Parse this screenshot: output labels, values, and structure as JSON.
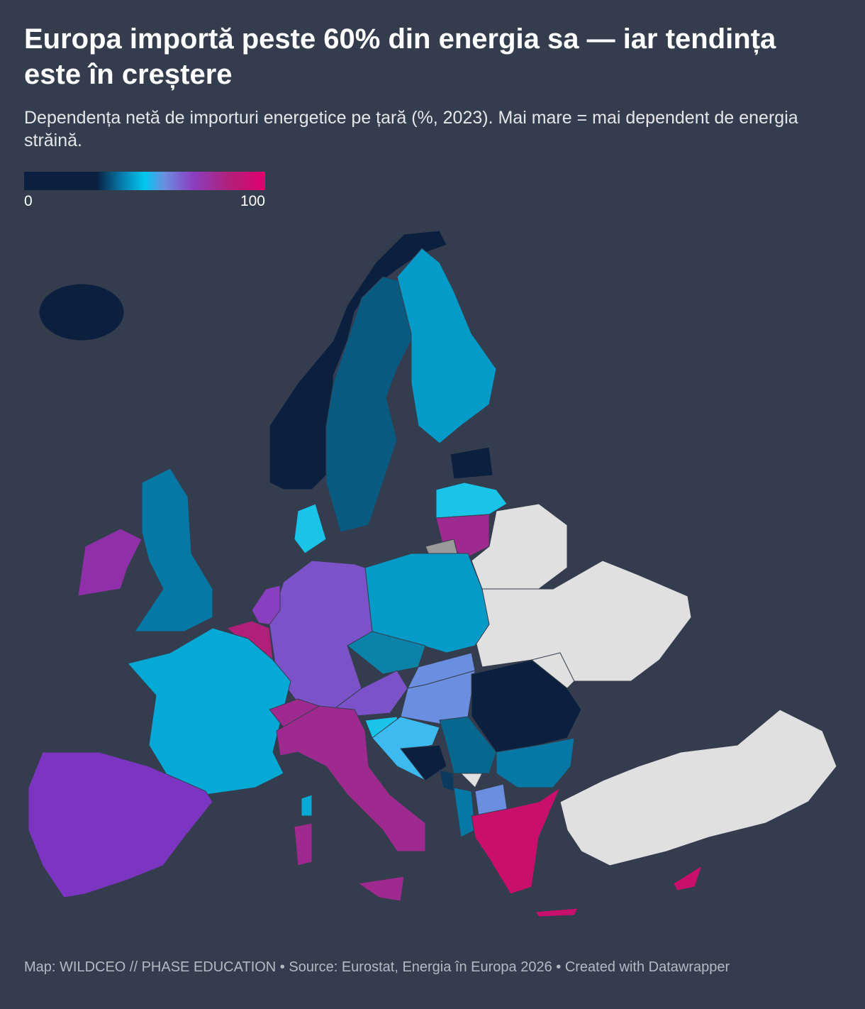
{
  "header": {
    "title": "Europa importă peste 60% din energia sa — iar tendința este în creștere",
    "subtitle": "Dependența netă de importuri energetice pe țară (%, 2023). Mai mare = mai dependent de energia străină."
  },
  "legend": {
    "min": 0,
    "max": 100
  },
  "footer": "Map: WILDCEO // PHASE EDUCATION • Source: Eurostat, Energia în Europa 2026 • Created with Datawrapper"
}
